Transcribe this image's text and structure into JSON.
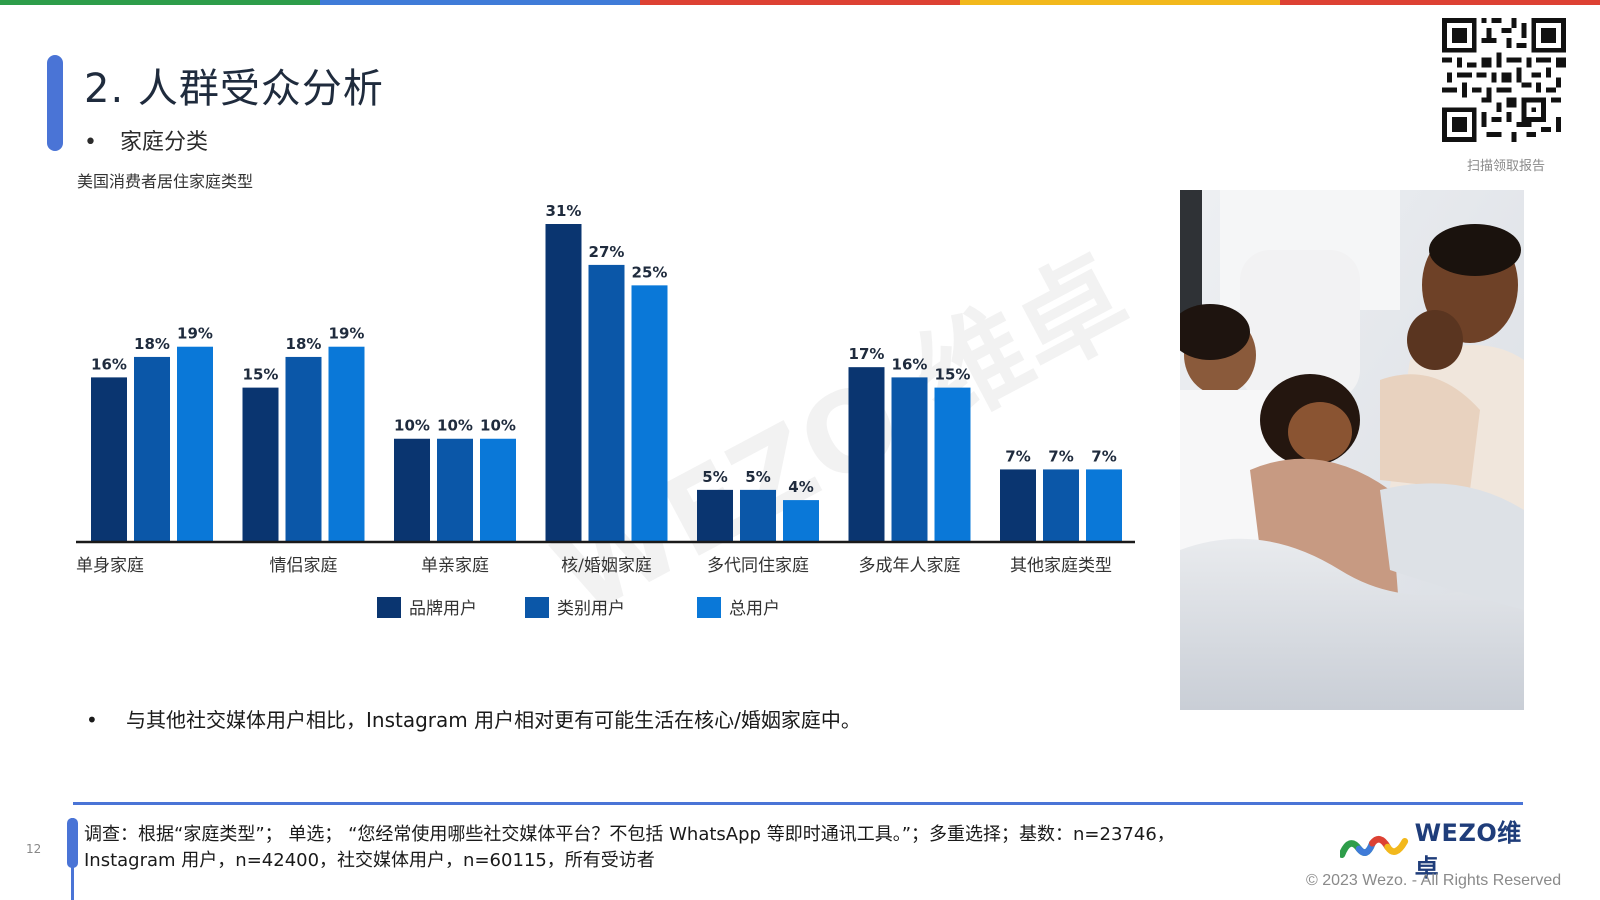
{
  "colors": {
    "topbar": [
      "#2e9d4a",
      "#3f7bd8",
      "#dd4133",
      "#f2b81c",
      "#dd4133"
    ],
    "series": [
      "#0a3570",
      "#0b57a8",
      "#0a78d8"
    ],
    "accent": "#4a74d6",
    "axis": "#1a1a1a"
  },
  "header": {
    "title": "2. 人群受众分析",
    "bullet": "•",
    "subtitle": "家庭分类",
    "chart_caption": "美国消费者居住家庭类型"
  },
  "qr": {
    "caption": "扫描领取报告",
    "icon": "qr-code-icon"
  },
  "chart_data": {
    "type": "bar",
    "title": "美国消费者居住家庭类型",
    "categories": [
      "单身家庭",
      "情侣家庭",
      "单亲家庭",
      "核/婚姻家庭",
      "多代同住家庭",
      "多成年人家庭",
      "其他家庭类型"
    ],
    "series": [
      {
        "name": "品牌用户",
        "values": [
          16,
          15,
          10,
          31,
          5,
          17,
          7
        ]
      },
      {
        "name": "类别用户",
        "values": [
          18,
          18,
          10,
          27,
          5,
          16,
          7
        ]
      },
      {
        "name": "总用户",
        "values": [
          19,
          19,
          10,
          25,
          4,
          15,
          7
        ]
      }
    ],
    "value_suffix": "%",
    "ylim": [
      0,
      31
    ],
    "grid": false,
    "legend_position": "bottom",
    "watermark": "WEZO 维卓"
  },
  "photo": {
    "description_icon": "family-bed-photo"
  },
  "body": {
    "bullet": "•",
    "text": "与其他社交媒体用户相比，Instagram 用户相对更有可能生活在核心/婚姻家庭中。"
  },
  "footer": {
    "page_number": "12",
    "note_line1": "调查：根据“家庭类型”；  单选；  “您经常使用哪些社交媒体平台？不包括 WhatsApp 等即时通讯工具。”；多重选择；基数：n=23746，",
    "note_line2": "Instagram 用户，n=42400，社交媒体用户，n=60115，所有受访者",
    "logo_text": "WEZO维卓",
    "copyright": "© 2023 Wezo. - All Rights Reserved"
  }
}
